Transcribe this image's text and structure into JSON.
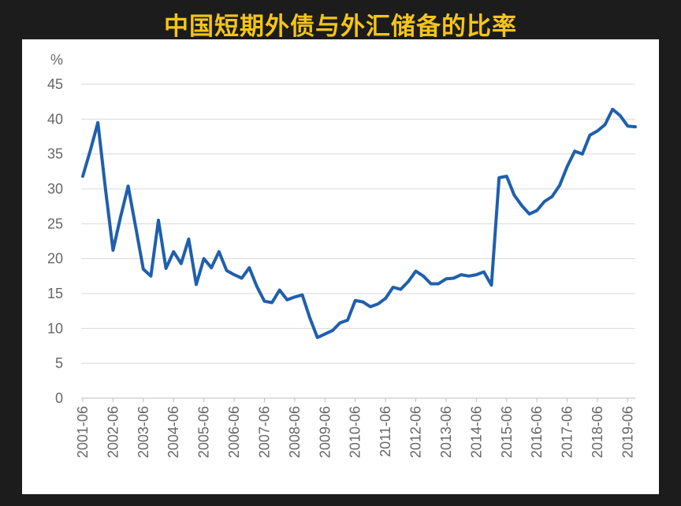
{
  "chart_data": {
    "type": "line",
    "title": "中国短期外债与外汇储备的比率",
    "ylabel": "%",
    "xlabel": "",
    "ylim": [
      0,
      45
    ],
    "y_ticks": [
      "0",
      "5",
      "10",
      "15",
      "20",
      "25",
      "30",
      "35",
      "40",
      "45"
    ],
    "x_tick_labels": [
      "2001-06",
      "2002-06",
      "2003-06",
      "2004-06",
      "2005-06",
      "2006-06",
      "2007-06",
      "2008-06",
      "2009-06",
      "2010-06",
      "2011-06",
      "2012-06",
      "2013-06",
      "2014-06",
      "2015-06",
      "2016-06",
      "2017-06",
      "2018-06",
      "2019-06"
    ],
    "grid": true,
    "line_color": "#1f5fad",
    "series": [
      {
        "values": [
          31.8,
          35.5,
          39.5,
          30.0,
          21.2,
          26.0,
          30.4,
          24.5,
          18.5,
          17.5,
          25.5,
          18.6,
          21.0,
          19.3,
          22.8,
          16.3,
          20.0,
          18.7,
          21.0,
          18.3,
          17.7,
          17.2,
          18.7,
          16.0,
          13.9,
          13.7,
          15.5,
          14.1,
          14.5,
          14.8,
          11.5,
          8.7,
          9.2,
          9.7,
          10.8,
          11.2,
          14.0,
          13.8,
          13.1,
          13.5,
          14.3,
          15.9,
          15.6,
          16.7,
          18.2,
          17.5,
          16.4,
          16.4,
          17.1,
          17.2,
          17.7,
          17.5,
          17.7,
          18.1,
          16.2,
          31.6,
          31.8,
          29.1,
          27.6,
          26.4,
          26.9,
          28.2,
          28.9,
          30.5,
          33.2,
          35.4,
          35.0,
          37.7,
          38.3,
          39.2,
          41.4,
          40.5,
          39.0,
          38.9
        ]
      }
    ]
  }
}
